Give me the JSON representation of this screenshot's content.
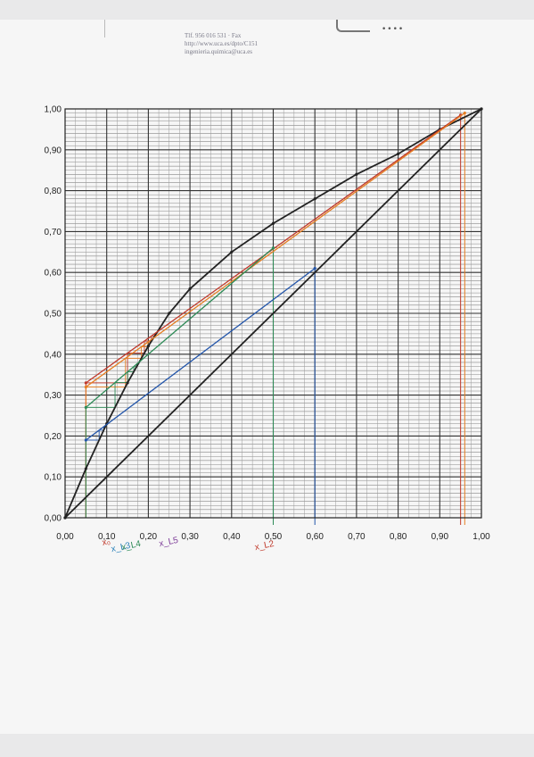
{
  "header": {
    "lines": [
      "Tlf. 956 016 531 · Fax",
      "http://www.uca.es/dpto/C151",
      "ingenieria.quimica@uca.es"
    ],
    "dots": "••••"
  },
  "chart_data": {
    "type": "line",
    "title": "",
    "xlabel": "",
    "ylabel": "",
    "xlim": [
      0,
      1
    ],
    "ylim": [
      0,
      1
    ],
    "x_ticks": [
      "0,00",
      "0,10",
      "0,20",
      "0,30",
      "0,40",
      "0,50",
      "0,60",
      "0,70",
      "0,80",
      "0,90",
      "1,00"
    ],
    "y_ticks": [
      "0,00",
      "0,10",
      "0,20",
      "0,30",
      "0,40",
      "0,50",
      "0,60",
      "0,70",
      "0,80",
      "0,90",
      "1,00"
    ],
    "grid": true,
    "series": [
      {
        "color": "#222222",
        "x": [
          0,
          1
        ],
        "y": [
          0,
          1
        ]
      },
      {
        "color": "#222222",
        "x": [
          0,
          0.05,
          0.1,
          0.15,
          0.2,
          0.25,
          0.3,
          0.4,
          0.5,
          0.6,
          0.7,
          0.8,
          0.9,
          1.0
        ],
        "y": [
          0,
          0.12,
          0.23,
          0.33,
          0.42,
          0.5,
          0.56,
          0.65,
          0.72,
          0.78,
          0.84,
          0.89,
          0.95,
          1.0
        ]
      },
      {
        "color": "#2255aa",
        "x": [
          0.05,
          0.6
        ],
        "y": [
          0.19,
          0.61
        ]
      },
      {
        "color": "#c0392b",
        "x": [
          0.05,
          0.95
        ],
        "y": [
          0.33,
          0.985
        ]
      },
      {
        "color": "#e67e22",
        "x": [
          0.05,
          0.96
        ],
        "y": [
          0.32,
          0.99
        ]
      },
      {
        "color": "#2e8b57",
        "x": [
          0.05,
          0.5
        ],
        "y": [
          0.27,
          0.66
        ]
      }
    ],
    "handwritten_labels": [
      {
        "text": "x₀",
        "color": "#c0392b"
      },
      {
        "text": "x_L3",
        "color": "#2980b9"
      },
      {
        "text": "x_L4",
        "color": "#2e8b57"
      },
      {
        "text": "x_L5",
        "color": "#7d3c98"
      },
      {
        "text": "x_L2",
        "color": "#c0392b"
      }
    ]
  }
}
